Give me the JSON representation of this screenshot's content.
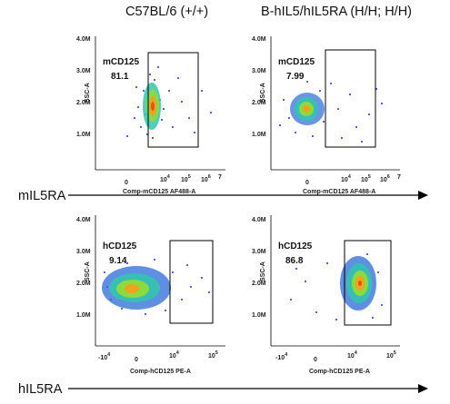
{
  "column_titles": [
    "C57BL/6 (+/+)",
    "B-hIL5/hIL5RA (H/H; H/H)"
  ],
  "row_labels": [
    "mIL5RA",
    "hIL5RA"
  ],
  "chart_data": [
    {
      "type": "scatter",
      "title": "C57BL/6 (+/+)",
      "xlabel": "Comp-mCD125 AF488-A",
      "ylabel": "SSC-A",
      "x_scale": "log",
      "x_ticks": [
        "0",
        "10^4",
        "10^5",
        "10^6",
        "10^7"
      ],
      "y_ticks": [
        "1.0M",
        "2.0M",
        "3.0M",
        "4.0M"
      ],
      "ylim": [
        0,
        4300000
      ],
      "gate": {
        "name": "mCD125",
        "percent": "81.1"
      },
      "population": {
        "center_x_decade": 3.7,
        "center_y": 1750000,
        "spread": "narrow, elongated vertically"
      }
    },
    {
      "type": "scatter",
      "title": "B-hIL5/hIL5RA (H/H; H/H)",
      "xlabel": "Comp-mCD125 AF488-A",
      "ylabel": "SSC-A",
      "x_scale": "log",
      "x_ticks": [
        "0",
        "10^4",
        "10^5",
        "10^6",
        "10^7"
      ],
      "y_ticks": [
        "1.0M",
        "2.0M",
        "3.0M",
        "4.0M"
      ],
      "ylim": [
        0,
        4300000
      ],
      "gate": {
        "name": "mCD125",
        "percent": "7.99"
      },
      "population": {
        "center_x_decade": 3.0,
        "center_y": 1700000,
        "spread": "compact, left of gate"
      }
    },
    {
      "type": "scatter",
      "xlabel": "Comp-hCD125 PE-A",
      "ylabel": "SSC-A",
      "x_scale": "biexponential",
      "x_ticks": [
        "-10^4",
        "0",
        "10^4",
        "10^5"
      ],
      "y_ticks": [
        "1.0M",
        "2.0M",
        "3.0M",
        "4.0M"
      ],
      "ylim": [
        0,
        4300000
      ],
      "gate": {
        "name": "hCD125",
        "percent": "9.14"
      },
      "population": {
        "center_x": "~0",
        "center_y": 1700000,
        "spread": "wide horizontally, mostly left of gate"
      }
    },
    {
      "type": "scatter",
      "xlabel": "Comp-hCD125 PE-A",
      "ylabel": "SSC-A",
      "x_scale": "biexponential",
      "x_ticks": [
        "-10^4",
        "0",
        "10^4",
        "10^5"
      ],
      "y_ticks": [
        "1.0M",
        "2.0M",
        "3.0M",
        "4.0M"
      ],
      "ylim": [
        0,
        4300000
      ],
      "gate": {
        "name": "hCD125",
        "percent": "86.8"
      },
      "population": {
        "center_x": "~10^4",
        "center_y": 1850000,
        "spread": "inside gate"
      }
    }
  ],
  "colors": {
    "density_low": "#2222cc",
    "density_mid": "#22c4c4",
    "density_high": "#f2a020",
    "gate": "#000000"
  }
}
